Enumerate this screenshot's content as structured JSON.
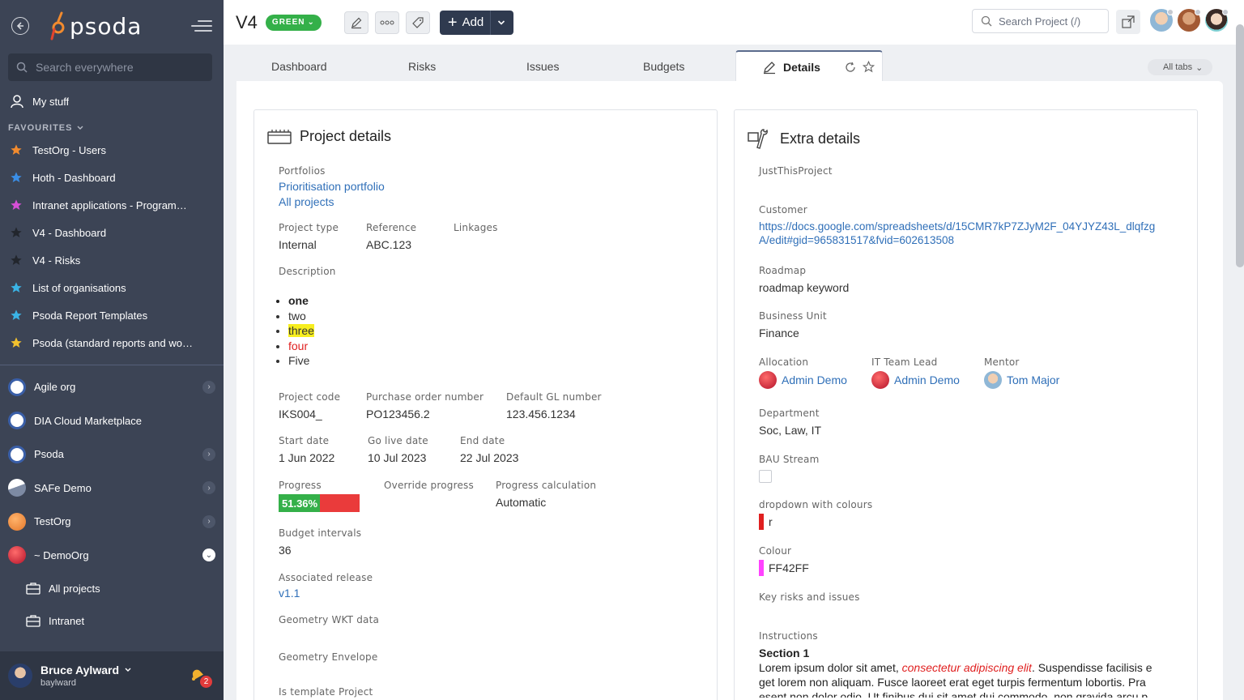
{
  "brand": {
    "name": "psoda"
  },
  "sidebar": {
    "search_placeholder": "Search everywhere",
    "my_stuff": "My stuff",
    "favourites_label": "FAVOURITES",
    "favourites": [
      {
        "label": "TestOrg - Users",
        "color": "#f28b2e"
      },
      {
        "label": "Hoth - Dashboard",
        "color": "#3a8ee6"
      },
      {
        "label": "Intranet applications - Programme…",
        "color": "#d64fd6"
      },
      {
        "label": "V4 - Dashboard",
        "color": "#2b2f36"
      },
      {
        "label": "V4 - Risks",
        "color": "#2b2f36"
      },
      {
        "label": "List of organisations",
        "color": "#3ab4e6"
      },
      {
        "label": "Psoda Report Templates",
        "color": "#3ab4e6"
      },
      {
        "label": "Psoda (standard reports and work…",
        "color": "#f2c12e"
      }
    ],
    "orgs": [
      {
        "label": "Agile org"
      },
      {
        "label": "DIA Cloud Marketplace"
      },
      {
        "label": "Psoda"
      },
      {
        "label": "SAFe Demo"
      },
      {
        "label": "TestOrg"
      },
      {
        "label": "~ DemoOrg"
      }
    ],
    "sub_items": [
      {
        "label": "All projects"
      },
      {
        "label": "Intranet"
      }
    ],
    "user": {
      "name": "Bruce Aylward",
      "login": "baylward",
      "notifications": "2"
    }
  },
  "topbar": {
    "title": "V4",
    "status": "GREEN",
    "add_label": "Add",
    "search_placeholder": "Search Project (/)"
  },
  "tabs": {
    "items": [
      "Dashboard",
      "Risks",
      "Issues",
      "Budgets"
    ],
    "active": "Details",
    "all_tabs": "All tabs"
  },
  "project_details": {
    "title": "Project details",
    "portfolios_label": "Portfolios",
    "portfolios": [
      "Prioritisation portfolio",
      "All projects"
    ],
    "project_type_label": "Project type",
    "project_type": "Internal",
    "reference_label": "Reference",
    "reference": "ABC.123",
    "linkages_label": "Linkages",
    "description_label": "Description",
    "description_items": [
      "one",
      "two",
      "three",
      "four",
      "Five"
    ],
    "project_code_label": "Project code",
    "project_code": "IKS004_",
    "po_label": "Purchase order number",
    "po": "PO123456.2",
    "gl_label": "Default GL number",
    "gl": "123.456.1234",
    "start_label": "Start date",
    "start": "1 Jun 2022",
    "golive_label": "Go live date",
    "golive": "10 Jul 2023",
    "end_label": "End date",
    "end": "22 Jul 2023",
    "progress_label": "Progress",
    "progress_text": "51.36%",
    "progress_value": 51.36,
    "override_label": "Override progress",
    "calc_label": "Progress calculation",
    "calc": "Automatic",
    "budget_label": "Budget intervals",
    "budget": "36",
    "release_label": "Associated release",
    "release": "v1.1",
    "wkt_label": "Geometry WKT data",
    "envelope_label": "Geometry Envelope",
    "template_label": "Is template Project"
  },
  "extra_details": {
    "title": "Extra details",
    "just_label": "JustThisProject",
    "customer_label": "Customer",
    "customer_line1": "https://docs.google.com/spreadsheets/d/15CMR7kP7ZJyM2F_04YJYZ43L_dlqfzg",
    "customer_line2": "A/edit#gid=965831517&fvid=602613508",
    "roadmap_label": "Roadmap",
    "roadmap": "roadmap keyword",
    "bu_label": "Business Unit",
    "bu": "Finance",
    "allocation_label": "Allocation",
    "allocation": "Admin Demo",
    "itlead_label": "IT Team Lead",
    "itlead": "Admin Demo",
    "mentor_label": "Mentor",
    "mentor": "Tom Major",
    "dept_label": "Department",
    "dept": "Soc, Law, IT",
    "bau_label": "BAU Stream",
    "dropdown_label": "dropdown with colours",
    "dropdown": "r",
    "dropdown_color": "#e02020",
    "colour_label": "Colour",
    "colour": "FF42FF",
    "colour_hex": "#ff42ff",
    "risks_label": "Key risks and issues",
    "instructions_label": "Instructions",
    "instructions_heading": "Section 1",
    "instr_1": "Lorem ipsum dolor sit amet, ",
    "instr_em": "consectetur adipiscing elit",
    "instr_2": ". Suspendisse facilisis e",
    "instr_line2": "get lorem non aliquam. Fusce laoreet erat eget turpis fermentum lobortis. Pra",
    "instr_line3": "esent non dolor odio. Ut finibus dui sit amet dui commodo, non gravida arcu p"
  }
}
